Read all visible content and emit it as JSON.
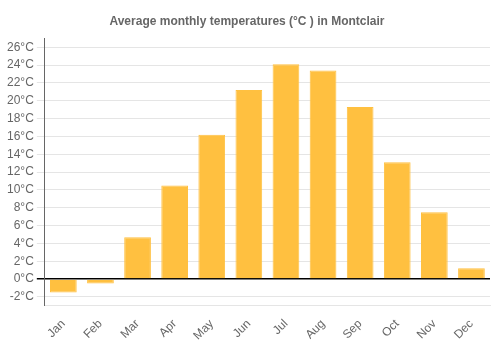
{
  "chart_data": {
    "type": "bar",
    "title": "Average monthly temperatures (°C ) in Montclair",
    "categories": [
      "Jan",
      "Feb",
      "Mar",
      "Apr",
      "May",
      "Jun",
      "Jul",
      "Aug",
      "Sep",
      "Oct",
      "Nov",
      "Dec"
    ],
    "values": [
      -1.5,
      -0.5,
      4.7,
      10.5,
      16.2,
      21.2,
      24.1,
      23.4,
      19.3,
      13.1,
      7.5,
      1.2
    ],
    "color": "#FFC040",
    "ylim": [
      -3,
      27
    ],
    "yticks": [
      {
        "value": -2,
        "label": "-2°C"
      },
      {
        "value": 0,
        "label": "0°C"
      },
      {
        "value": 2,
        "label": "2°C"
      },
      {
        "value": 4,
        "label": "4°C"
      },
      {
        "value": 6,
        "label": "6°C"
      },
      {
        "value": 8,
        "label": "8°C"
      },
      {
        "value": 10,
        "label": "10°C"
      },
      {
        "value": 12,
        "label": "12°C"
      },
      {
        "value": 14,
        "label": "14°C"
      },
      {
        "value": 16,
        "label": "16°C"
      },
      {
        "value": 18,
        "label": "18°C"
      },
      {
        "value": 20,
        "label": "20°C"
      },
      {
        "value": 22,
        "label": "22°C"
      },
      {
        "value": 24,
        "label": "24°C"
      },
      {
        "value": 26,
        "label": "26°C"
      }
    ],
    "grid": true
  }
}
